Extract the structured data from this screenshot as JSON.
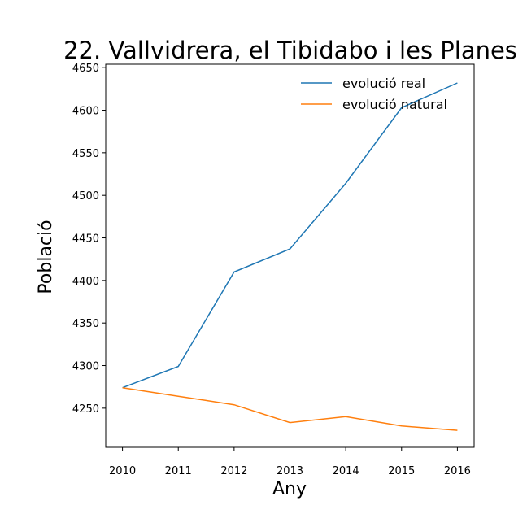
{
  "chart_data": {
    "type": "line",
    "title": "22. Vallvidrera, el Tibidabo i les Planes",
    "xlabel": "Any",
    "ylabel": "Població",
    "x": [
      2010,
      2011,
      2012,
      2013,
      2014,
      2015,
      2016
    ],
    "xlim": [
      2009.7,
      2016.3
    ],
    "ylim": [
      4204,
      4654
    ],
    "yticks": [
      4250,
      4300,
      4350,
      4400,
      4450,
      4500,
      4550,
      4600,
      4650
    ],
    "grid": false,
    "legend_position": "top-right",
    "series": [
      {
        "name": "evolució real",
        "color": "#1f77b4",
        "values": [
          4274,
          4299,
          4410,
          4437,
          4514,
          4603,
          4632
        ]
      },
      {
        "name": "evolució natural",
        "color": "#ff7f0e",
        "values": [
          4274,
          4264,
          4254,
          4233,
          4240,
          4229,
          4224
        ]
      }
    ]
  }
}
